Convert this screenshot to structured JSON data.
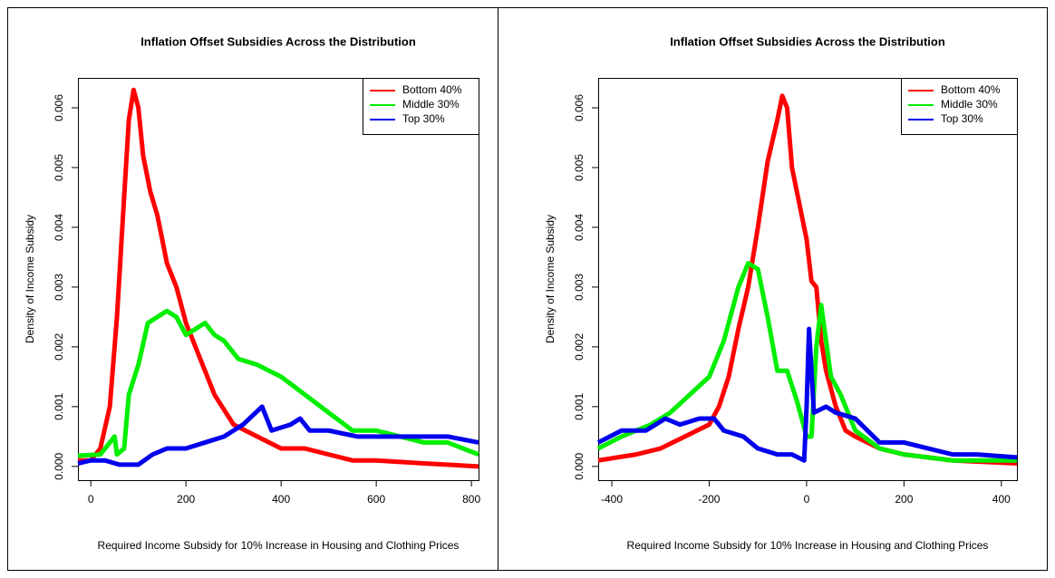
{
  "chart_data": [
    {
      "type": "line",
      "title": "Inflation Offset Subsidies Across the Distribution",
      "x_label": "Required Income Subsidy for 10% Increase in Housing and Clothing Prices",
      "y_label": "Density of Income Subsidy",
      "xlim": [
        -27,
        815
      ],
      "ylim": [
        -0.00023,
        0.0065
      ],
      "xticks": [
        0,
        200,
        400,
        600,
        800
      ],
      "yticks": [
        {
          "value": 0,
          "label": "0.000"
        },
        {
          "value": 0.001,
          "label": "0.001"
        },
        {
          "value": 0.002,
          "label": "0.002"
        },
        {
          "value": 0.003,
          "label": "0.003"
        },
        {
          "value": 0.004,
          "label": "0.004"
        },
        {
          "value": 0.005,
          "label": "0.005"
        },
        {
          "value": 0.006,
          "label": "0.006"
        }
      ],
      "legend": "top-right",
      "series": [
        {
          "name": "Bottom 40%",
          "color": "#ff0000",
          "x": [
            -27,
            0,
            20,
            40,
            55,
            70,
            80,
            90,
            100,
            110,
            125,
            140,
            160,
            180,
            200,
            230,
            260,
            300,
            350,
            400,
            450,
            500,
            550,
            600,
            700,
            815
          ],
          "values": [
            0.0001,
            0.0001,
            0.0003,
            0.001,
            0.0025,
            0.0045,
            0.0058,
            0.0063,
            0.006,
            0.0052,
            0.0046,
            0.0042,
            0.0034,
            0.003,
            0.0024,
            0.0018,
            0.0012,
            0.0007,
            0.0005,
            0.0003,
            0.0003,
            0.0002,
            0.0001,
            0.0001,
            5e-05,
            0
          ]
        },
        {
          "name": "Middle 30%",
          "color": "#00ee00",
          "x": [
            -27,
            20,
            40,
            50,
            55,
            70,
            80,
            100,
            120,
            140,
            160,
            180,
            200,
            220,
            240,
            260,
            280,
            310,
            350,
            400,
            450,
            500,
            550,
            600,
            650,
            700,
            750,
            815
          ],
          "values": [
            0.00018,
            0.0002,
            0.0004,
            0.0005,
            0.0002,
            0.0003,
            0.0012,
            0.0017,
            0.0024,
            0.0025,
            0.0026,
            0.0025,
            0.0022,
            0.0023,
            0.0024,
            0.0022,
            0.0021,
            0.0018,
            0.0017,
            0.0015,
            0.0012,
            0.0009,
            0.0006,
            0.0006,
            0.0005,
            0.0004,
            0.0004,
            0.0002
          ]
        },
        {
          "name": "Top 30%",
          "color": "#0000ee",
          "x": [
            -27,
            0,
            30,
            60,
            100,
            130,
            160,
            200,
            240,
            280,
            320,
            360,
            380,
            420,
            440,
            460,
            500,
            560,
            600,
            650,
            700,
            750,
            815
          ],
          "values": [
            5e-05,
            0.0001,
            0.0001,
            3e-05,
            3e-05,
            0.0002,
            0.0003,
            0.0003,
            0.0004,
            0.0005,
            0.0007,
            0.001,
            0.0006,
            0.0007,
            0.0008,
            0.0006,
            0.0006,
            0.0005,
            0.0005,
            0.0005,
            0.0005,
            0.0005,
            0.0004
          ]
        }
      ]
    },
    {
      "type": "line",
      "title": "Inflation Offset Subsidies Across the Distribution",
      "x_label": "Required Income Subsidy for 10% Increase in Housing and Clothing Prices",
      "y_label": "Density of Income Subsidy",
      "xlim": [
        -428,
        432
      ],
      "ylim": [
        -0.00023,
        0.0065
      ],
      "xticks": [
        -400,
        -200,
        0,
        200,
        400
      ],
      "yticks": [
        {
          "value": 0,
          "label": "0.000"
        },
        {
          "value": 0.001,
          "label": "0.001"
        },
        {
          "value": 0.002,
          "label": "0.002"
        },
        {
          "value": 0.003,
          "label": "0.003"
        },
        {
          "value": 0.004,
          "label": "0.004"
        },
        {
          "value": 0.005,
          "label": "0.005"
        },
        {
          "value": 0.006,
          "label": "0.006"
        }
      ],
      "legend": "top-right",
      "series": [
        {
          "name": "Bottom 40%",
          "color": "#ff0000",
          "x": [
            -428,
            -350,
            -300,
            -250,
            -200,
            -180,
            -160,
            -140,
            -120,
            -100,
            -80,
            -60,
            -50,
            -40,
            -30,
            -10,
            0,
            10,
            20,
            30,
            40,
            60,
            80,
            100,
            150,
            200,
            300,
            432
          ],
          "values": [
            0.0001,
            0.0002,
            0.0003,
            0.0005,
            0.0007,
            0.001,
            0.0015,
            0.0023,
            0.003,
            0.004,
            0.0051,
            0.0058,
            0.0062,
            0.006,
            0.005,
            0.0042,
            0.0038,
            0.0031,
            0.003,
            0.0021,
            0.0016,
            0.001,
            0.0006,
            0.0005,
            0.0003,
            0.0002,
            0.0001,
            5e-05
          ]
        },
        {
          "name": "Middle 30%",
          "color": "#00ee00",
          "x": [
            -428,
            -380,
            -320,
            -280,
            -240,
            -200,
            -170,
            -140,
            -120,
            -100,
            -80,
            -60,
            -40,
            -20,
            0,
            10,
            20,
            30,
            50,
            70,
            100,
            150,
            200,
            300,
            432
          ],
          "values": [
            0.0003,
            0.0005,
            0.0007,
            0.0009,
            0.0012,
            0.0015,
            0.0021,
            0.003,
            0.0034,
            0.0033,
            0.0025,
            0.0016,
            0.0016,
            0.0011,
            0.0005,
            0.0005,
            0.002,
            0.0027,
            0.0015,
            0.0012,
            0.0006,
            0.0003,
            0.0002,
            0.0001,
            0.0001
          ]
        },
        {
          "name": "Top 30%",
          "color": "#0000ee",
          "x": [
            -428,
            -380,
            -330,
            -290,
            -260,
            -220,
            -190,
            -170,
            -130,
            -100,
            -60,
            -30,
            -5,
            0,
            5,
            15,
            40,
            60,
            100,
            150,
            200,
            250,
            300,
            350,
            432
          ],
          "values": [
            0.0004,
            0.0006,
            0.0006,
            0.0008,
            0.0007,
            0.0008,
            0.0008,
            0.0006,
            0.0005,
            0.0003,
            0.0002,
            0.0002,
            0.0001,
            0.001,
            0.0023,
            0.0009,
            0.001,
            0.0009,
            0.0008,
            0.0004,
            0.0004,
            0.0003,
            0.0002,
            0.0002,
            0.00015
          ]
        }
      ]
    }
  ]
}
